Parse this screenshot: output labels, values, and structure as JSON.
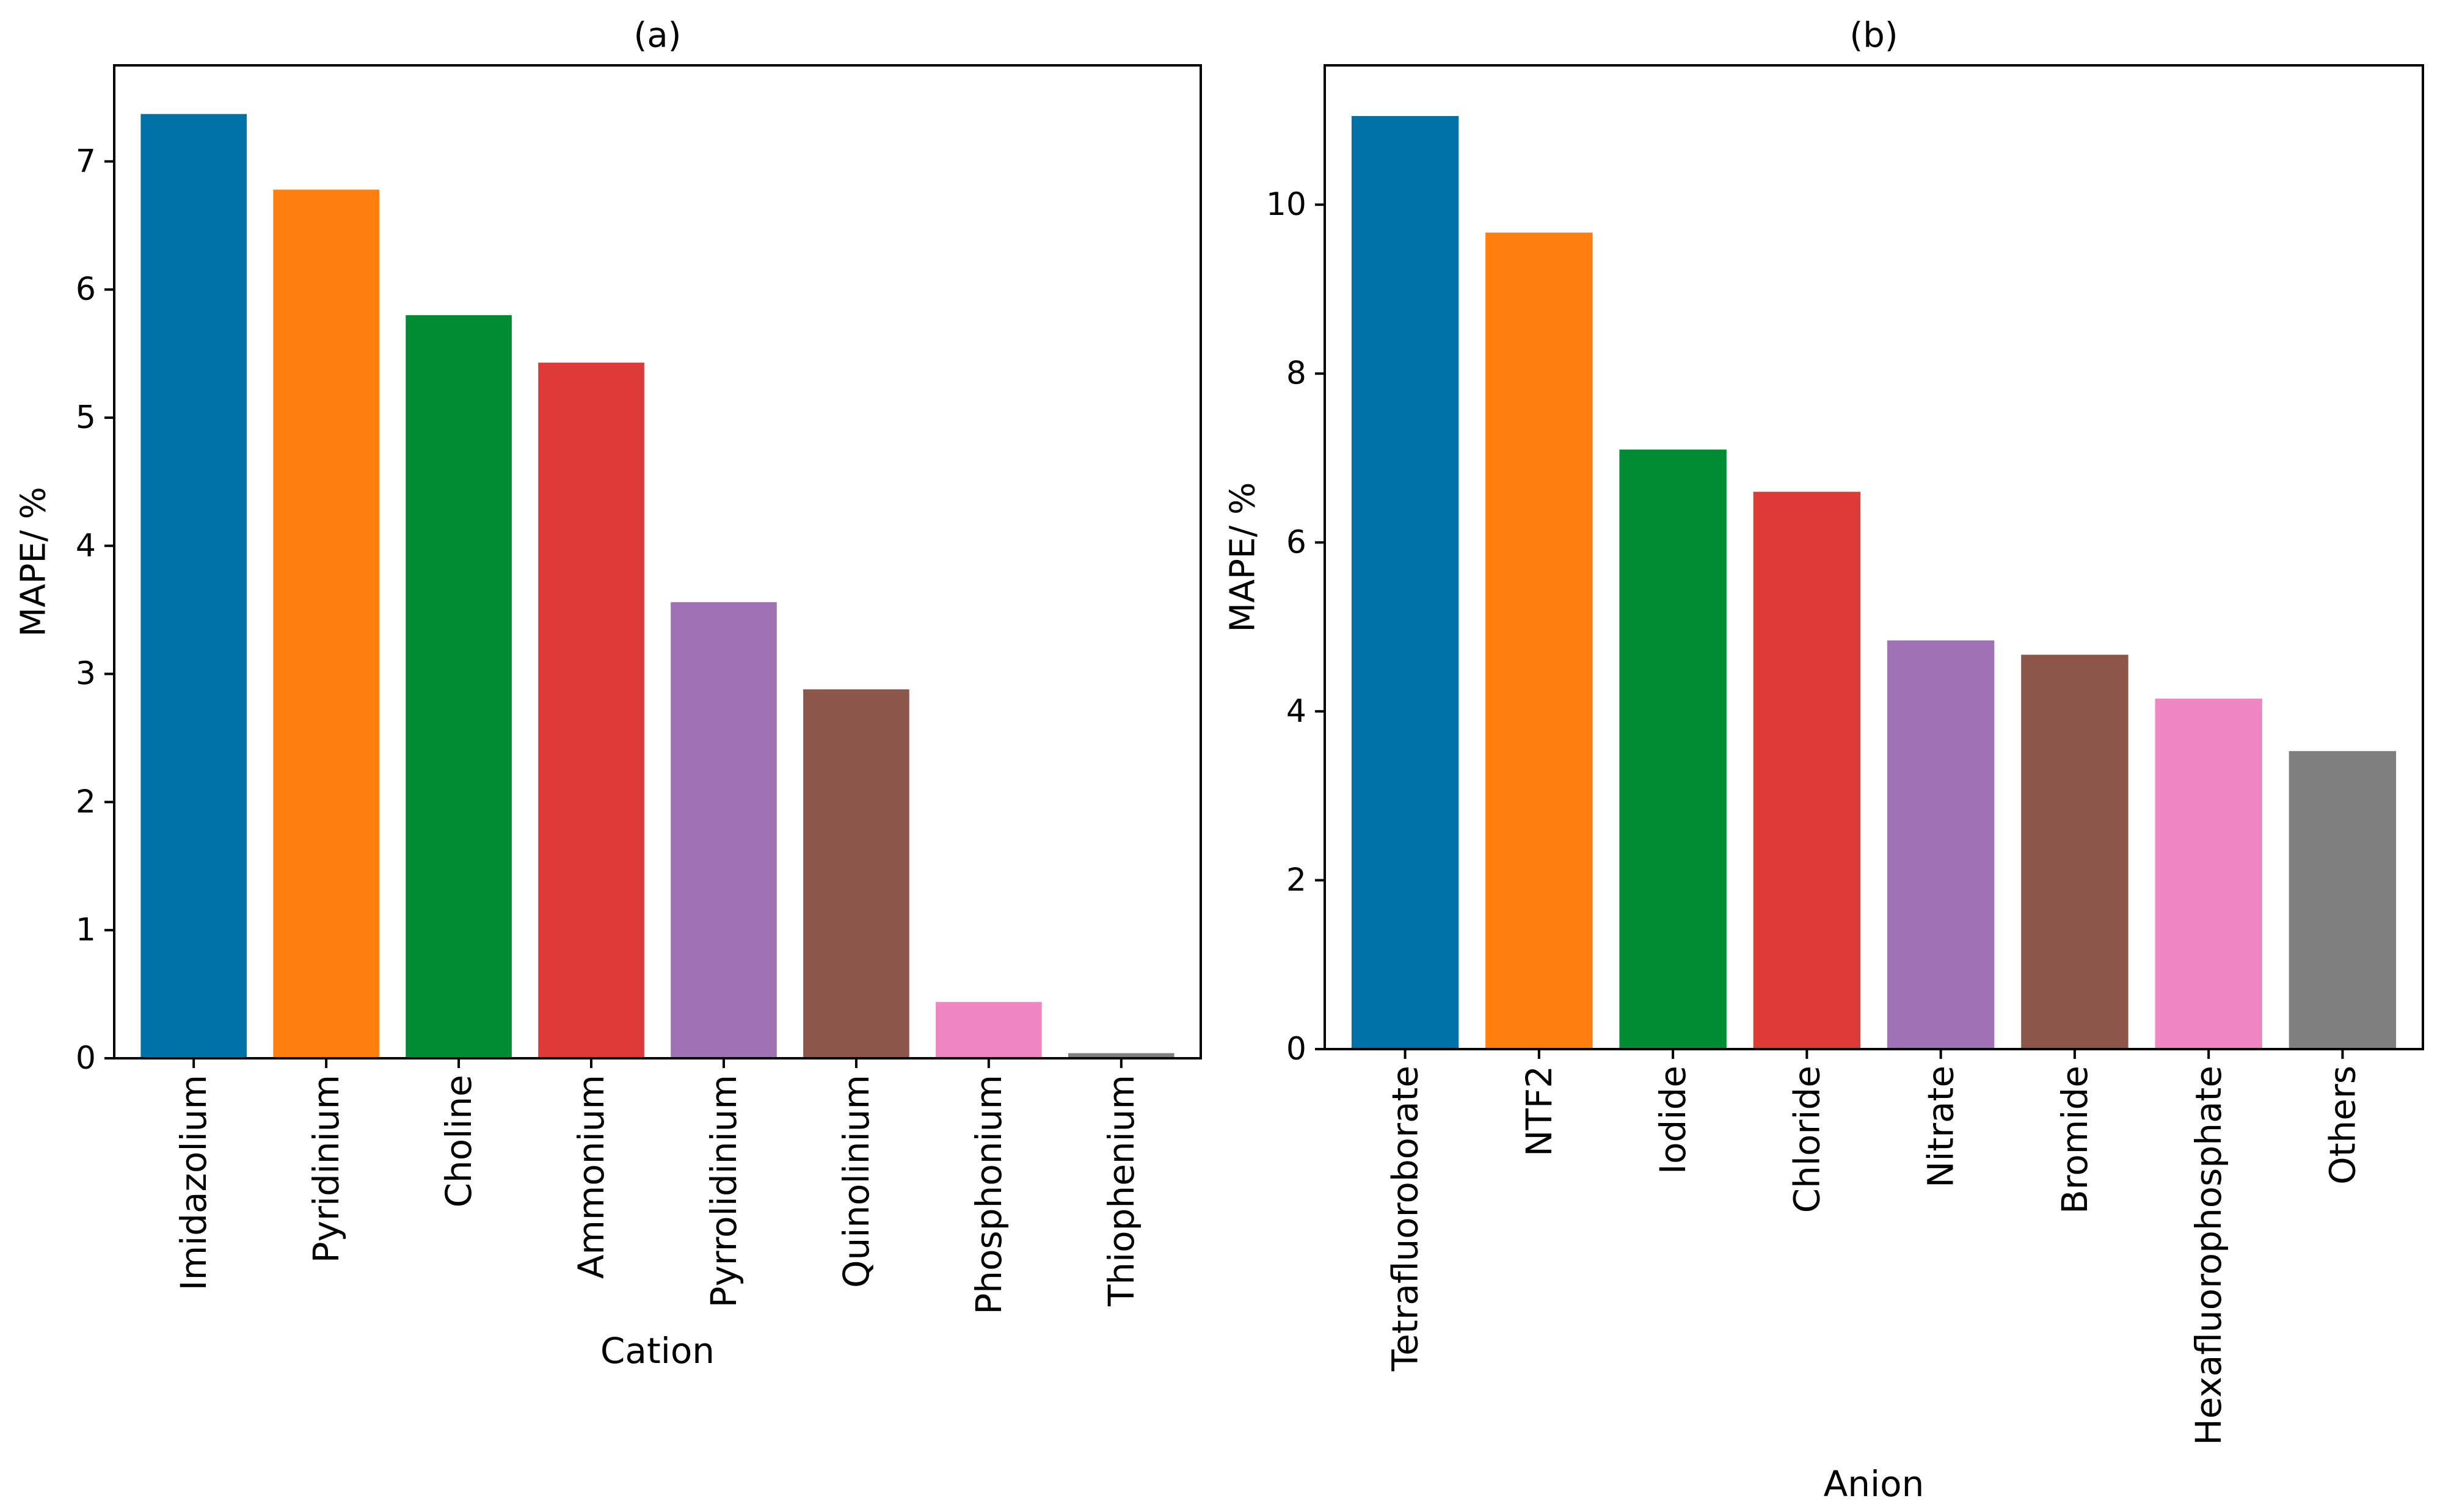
{
  "chart_data": [
    {
      "type": "bar",
      "title": "(a)",
      "xlabel": "Cation",
      "ylabel": "MAPE/ %",
      "categories": [
        "Imidazolium",
        "Pyridinium",
        "Choline",
        "Ammonium",
        "Pyrrolidinium",
        "Quinolinium",
        "Phosphonium",
        "Thiophenium"
      ],
      "values": [
        7.37,
        6.78,
        5.8,
        5.43,
        3.56,
        2.88,
        0.44,
        0.04
      ],
      "colors": [
        "#0072a8",
        "#ff7f0e",
        "#008c32",
        "#de3a37",
        "#9e72b4",
        "#8c564b",
        "#ee86c2",
        "#7f7f7f"
      ],
      "ylim": [
        0,
        7.75
      ],
      "yticks": [
        0,
        1,
        2,
        3,
        4,
        5,
        6,
        7
      ],
      "grid": false
    },
    {
      "type": "bar",
      "title": "(b)",
      "xlabel": "Anion",
      "ylabel": "MAPE/ %",
      "categories": [
        "Tetrafluoroborate",
        "NTF2",
        "Iodide",
        "Chloride",
        "Nitrate",
        "Bromide",
        "Hexafluorophosphate",
        "Others"
      ],
      "values": [
        11.05,
        9.67,
        7.1,
        6.6,
        4.84,
        4.67,
        4.15,
        3.53
      ],
      "colors": [
        "#0072a8",
        "#ff7f0e",
        "#008c32",
        "#de3a37",
        "#9e72b4",
        "#8c564b",
        "#ee86c2",
        "#7f7f7f"
      ],
      "ylim": [
        0,
        11.65
      ],
      "yticks": [
        0,
        2,
        4,
        6,
        8,
        10
      ],
      "grid": false
    }
  ]
}
